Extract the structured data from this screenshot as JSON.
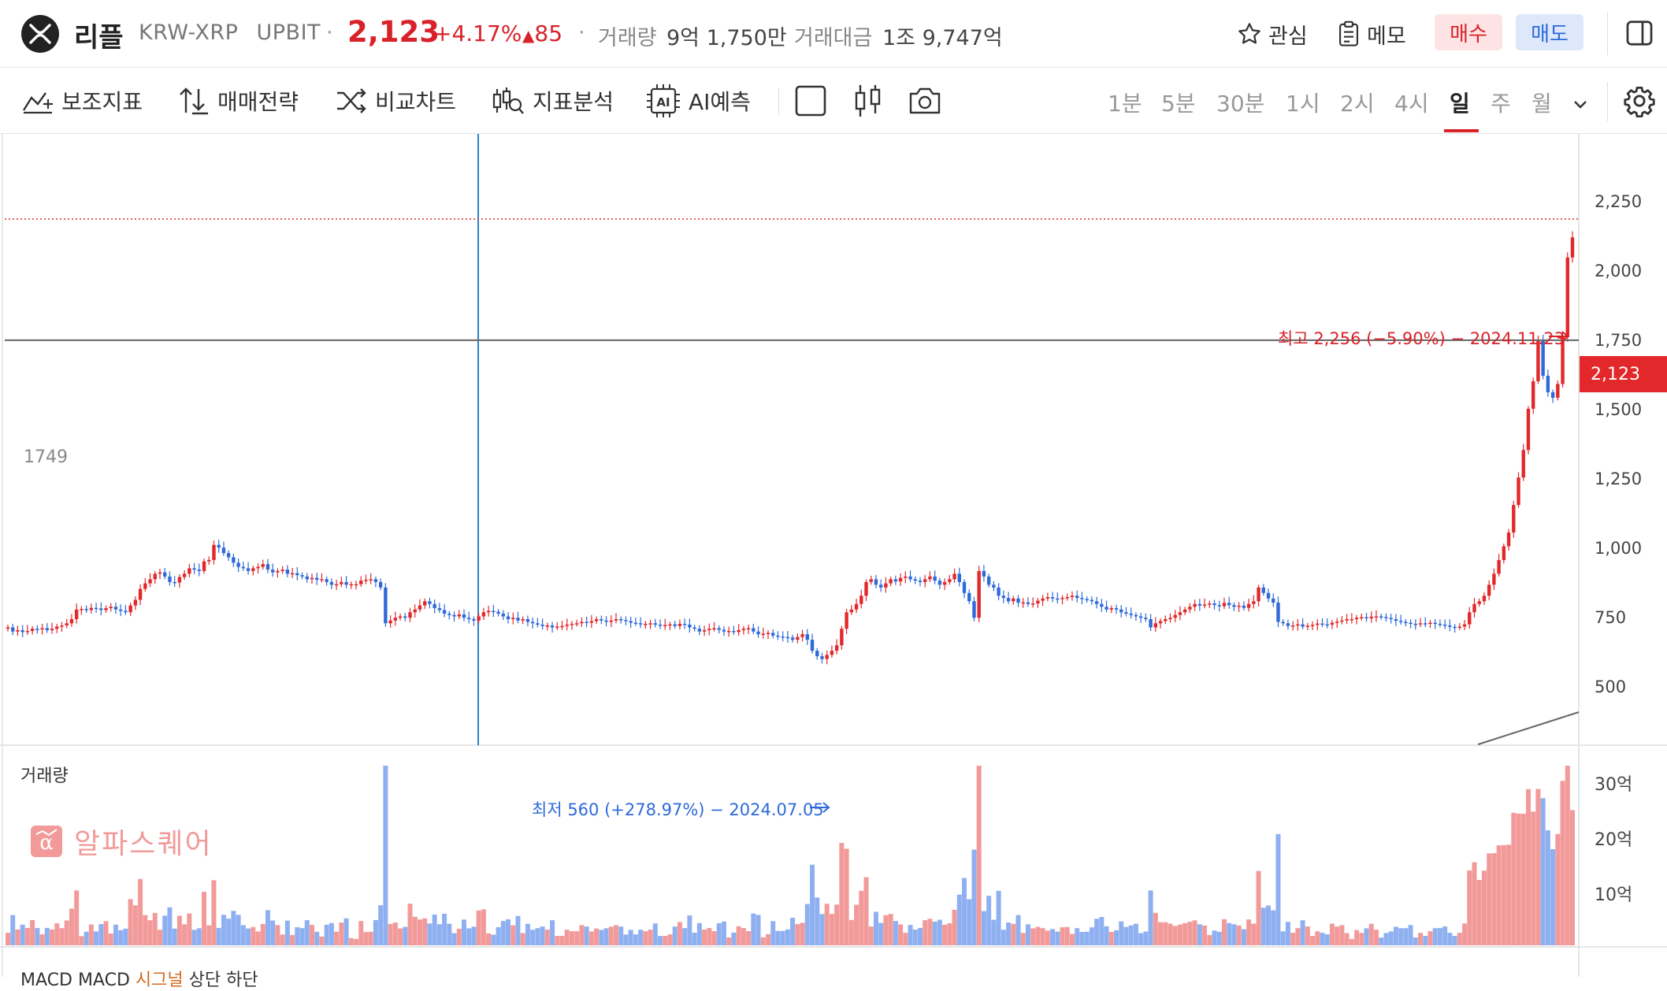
{
  "header": {
    "coin_name": "리플",
    "pair": "KRW-XRP",
    "exchange": "UPBIT",
    "price": "2,123",
    "change_pct": "+4.17%",
    "change_abs": "85",
    "volume_label": "거래량",
    "volume_value": "9억 1,750만",
    "amount_label": "거래대금",
    "amount_value": "1조 9,747억",
    "watch_label": "관심",
    "memo_label": "메모",
    "buy_label": "매수",
    "sell_label": "매도"
  },
  "toolbar": {
    "indicator_label": "보조지표",
    "strategy_label": "매매전략",
    "compare_label": "비교차트",
    "analysis_label": "지표분석",
    "ai_label": "AI예측",
    "timeframes": [
      "1분",
      "5분",
      "30분",
      "1시",
      "2시",
      "4시",
      "일",
      "주",
      "월"
    ],
    "active_timeframe": "일"
  },
  "chart": {
    "watermark": "알파스퀘어",
    "hline_value": "1749",
    "high_annotation": "최고 2,256 (−5.90%) − 2024.11.23",
    "low_annotation": "최저 560 (+278.97%) − 2024.07.05",
    "current_price_tag": "2,123",
    "y_ticks": [
      "2,250",
      "2,000",
      "1,750",
      "1,500",
      "1,250",
      "1,000",
      "750",
      "500"
    ],
    "volume_title": "거래량",
    "volume_ticks": [
      "30억",
      "20억",
      "10억"
    ],
    "macd_title_prefix": "MACD",
    "macd_title_series": "MACD",
    "macd_title_signal": "시그널",
    "macd_title_rest": "상단 하단",
    "colors": {
      "up": "#e2282b",
      "down": "#2e6ad9",
      "vol_up": "#f29a9a",
      "vol_down": "#8fb0f0"
    }
  },
  "chart_data": {
    "type": "candlestick",
    "y_range": [
      300,
      2450
    ],
    "hline": 1749,
    "current": 2123,
    "high": {
      "value": 2256,
      "date": "2024.11.23"
    },
    "low": {
      "value": 560,
      "date": "2024.07.05"
    },
    "closes": [
      705,
      690,
      695,
      688,
      692,
      700,
      698,
      702,
      695,
      700,
      708,
      712,
      720,
      735,
      770,
      772,
      768,
      776,
      774,
      768,
      775,
      780,
      770,
      765,
      760,
      785,
      805,
      845,
      865,
      880,
      900,
      905,
      890,
      870,
      868,
      888,
      900,
      920,
      915,
      910,
      945,
      950,
      1005,
      995,
      975,
      960,
      940,
      925,
      920,
      910,
      920,
      925,
      935,
      915,
      905,
      910,
      915,
      900,
      902,
      895,
      890,
      880,
      885,
      878,
      880,
      870,
      860,
      862,
      870,
      860,
      862,
      862,
      875,
      878,
      880,
      870,
      850,
      720,
      730,
      740,
      745,
      740,
      760,
      770,
      785,
      800,
      790,
      775,
      768,
      755,
      750,
      745,
      752,
      740,
      735,
      730,
      745,
      760,
      765,
      762,
      755,
      745,
      735,
      740,
      730,
      735,
      725,
      720,
      715,
      710,
      712,
      705,
      708,
      710,
      715,
      718,
      720,
      725,
      722,
      728,
      735,
      730,
      725,
      730,
      735,
      732,
      728,
      722,
      720,
      716,
      718,
      720,
      715,
      712,
      714,
      716,
      710,
      718,
      715,
      705,
      700,
      690,
      695,
      700,
      702,
      696,
      690,
      692,
      688,
      695,
      700,
      702,
      690,
      680,
      682,
      685,
      675,
      672,
      670,
      668,
      660,
      670,
      680,
      660,
      620,
      600,
      590,
      605,
      620,
      640,
      700,
      760,
      770,
      790,
      820,
      870,
      880,
      860,
      850,
      865,
      880,
      872,
      885,
      890,
      880,
      875,
      870,
      880,
      890,
      875,
      860,
      870,
      880,
      900,
      870,
      830,
      800,
      740,
      910,
      890,
      860,
      850,
      820,
      812,
      800,
      810,
      795,
      796,
      790,
      792,
      802,
      810,
      815,
      810,
      808,
      812,
      815,
      820,
      812,
      808,
      805,
      800,
      790,
      780,
      770,
      775,
      770,
      760,
      755,
      750,
      745,
      740,
      735,
      705,
      720,
      728,
      735,
      740,
      750,
      760,
      770,
      780,
      790,
      784,
      788,
      792,
      786,
      782,
      794,
      786,
      780,
      784,
      776,
      790,
      800,
      850,
      830,
      810,
      795,
      725,
      720,
      710,
      712,
      716,
      708,
      711,
      714,
      719,
      716,
      715,
      722,
      726,
      730,
      735,
      735,
      740,
      742,
      738,
      744,
      745,
      743,
      739,
      735,
      729,
      725,
      722,
      718,
      716,
      720,
      719,
      722,
      718,
      715,
      712,
      707,
      705,
      708,
      716,
      760,
      790,
      800,
      820,
      860,
      900,
      950,
      1000,
      1050,
      1150,
      1250,
      1350,
      1500,
      1600,
      1750,
      1620,
      1560,
      1540,
      1590,
      1760,
      2050,
      2123
    ]
  }
}
